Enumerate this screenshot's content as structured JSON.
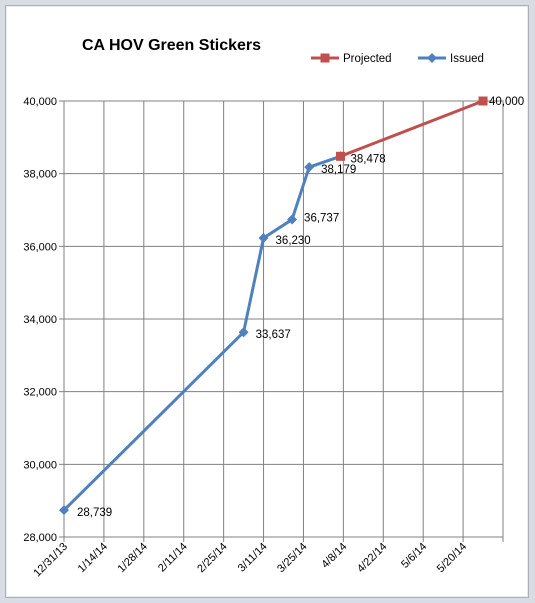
{
  "chart_data": {
    "type": "line",
    "title": "CA HOV Green Stickers",
    "xlabel": "",
    "ylabel": "",
    "ylim": [
      28000,
      40000
    ],
    "y_ticks": [
      28000,
      30000,
      32000,
      34000,
      36000,
      38000,
      40000
    ],
    "y_tick_labels": [
      "28,000",
      "30,000",
      "32,000",
      "34,000",
      "36,000",
      "38,000",
      "40,000"
    ],
    "x_ticks": [
      "2013-12-31",
      "2014-01-14",
      "2014-01-28",
      "2014-02-11",
      "2014-02-25",
      "2014-03-11",
      "2014-03-25",
      "2014-04-08",
      "2014-04-22",
      "2014-05-06",
      "2014-05-20"
    ],
    "x_tick_labels": [
      "12/31/13",
      "1/14/14",
      "1/28/14",
      "2/11/14",
      "2/25/14",
      "3/11/14",
      "3/25/14",
      "4/8/14",
      "4/22/14",
      "5/6/14",
      "5/20/14"
    ],
    "xlim": [
      "2013-12-31",
      "2014-06-03"
    ],
    "grid": true,
    "legend_position": "top-right",
    "series": [
      {
        "name": "Projected",
        "color": "#c0504d",
        "marker": "square",
        "x": [
          "2014-04-07",
          "2014-05-27"
        ],
        "y": [
          38478,
          40000
        ],
        "labels": [
          "",
          "40,000"
        ]
      },
      {
        "name": "Issued",
        "color": "#4f81bd",
        "marker": "diamond",
        "x": [
          "2013-12-31",
          "2014-03-04",
          "2014-03-11",
          "2014-03-21",
          "2014-03-27",
          "2014-04-07"
        ],
        "y": [
          28739,
          33637,
          36230,
          36737,
          38179,
          38478
        ],
        "labels": [
          "28,739",
          "33,637",
          "36,230",
          "36,737",
          "38,179",
          "38,478"
        ]
      }
    ]
  }
}
